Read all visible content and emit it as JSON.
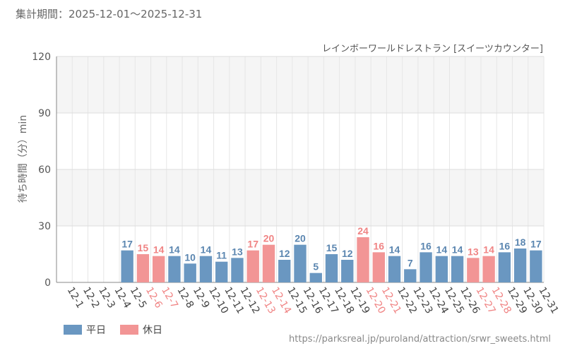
{
  "header": {
    "period_label": "集計期間：2025-12-01～2025-12-31",
    "facility": "レインボーワールドレストラン [スイーツカウンター]"
  },
  "legend": {
    "weekday": "平日",
    "holiday": "休日"
  },
  "source_url": "https://parksreal.jp/puroland/attraction/srwr_sweets.html",
  "colors": {
    "weekday": "#6a97c1",
    "holiday": "#f29595",
    "weekday_text": "#5b86b0",
    "holiday_text": "#f08484"
  },
  "chart_data": {
    "type": "bar",
    "title": "",
    "xlabel": "",
    "ylabel": "待ち時間（分）min",
    "ylim": [
      0,
      120
    ],
    "yticks": [
      0,
      30,
      60,
      90,
      120
    ],
    "categories": [
      "12-1",
      "12-2",
      "12-3",
      "12-4",
      "12-5",
      "12-6",
      "12-7",
      "12-8",
      "12-9",
      "12-10",
      "12-11",
      "12-12",
      "12-13",
      "12-14",
      "12-15",
      "12-16",
      "12-17",
      "12-18",
      "12-19",
      "12-20",
      "12-21",
      "12-22",
      "12-23",
      "12-24",
      "12-25",
      "12-26",
      "12-27",
      "12-28",
      "12-29",
      "12-30",
      "12-31"
    ],
    "values": [
      null,
      null,
      null,
      null,
      17,
      15,
      14,
      14,
      10,
      14,
      11,
      13,
      17,
      20,
      12,
      20,
      5,
      15,
      12,
      24,
      16,
      14,
      7,
      16,
      14,
      14,
      13,
      14,
      16,
      18,
      17
    ],
    "day_type": [
      "weekday",
      "weekday",
      "weekday",
      "weekday",
      "weekday",
      "holiday",
      "holiday",
      "weekday",
      "weekday",
      "weekday",
      "weekday",
      "weekday",
      "holiday",
      "holiday",
      "weekday",
      "weekday",
      "weekday",
      "weekday",
      "weekday",
      "holiday",
      "holiday",
      "weekday",
      "weekday",
      "weekday",
      "weekday",
      "weekday",
      "holiday",
      "holiday",
      "weekday",
      "weekday",
      "weekday"
    ],
    "series": [
      {
        "name": "平日",
        "key": "weekday"
      },
      {
        "name": "休日",
        "key": "holiday"
      }
    ]
  }
}
